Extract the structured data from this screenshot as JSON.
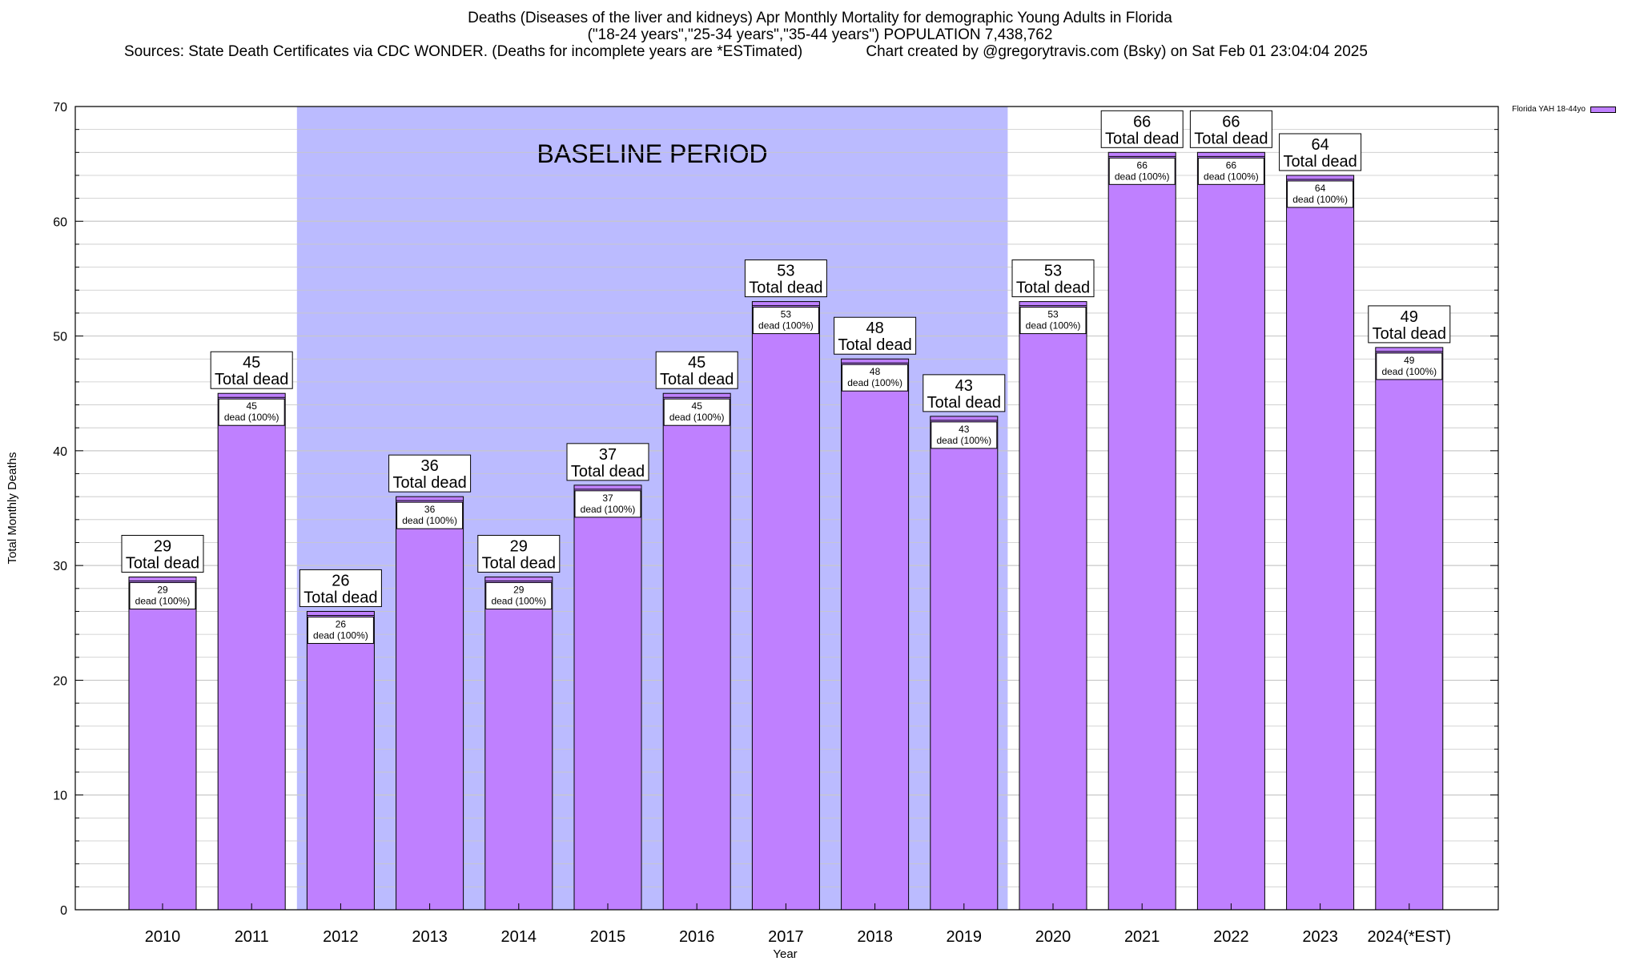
{
  "header": {
    "line1": "Deaths (Diseases of the liver and kidneys) Apr Monthly Mortality for demographic Young Adults in Florida",
    "line2": "(\"18-24 years\",\"25-34 years\",\"35-44 years\") POPULATION 7,438,762",
    "line3": "Sources: State Death Certificates via CDC WONDER. (Deaths for incomplete years are *ESTimated)               Chart created by @gregorytravis.com (Bsky) on Sat Feb 01 23:04:04 2025"
  },
  "colors": {
    "bar": "#bf80ff",
    "baseline": "#bbbbff",
    "grid": "#c8c8c8"
  },
  "chart_data": {
    "type": "bar",
    "categories": [
      "2010",
      "2011",
      "2012",
      "2013",
      "2014",
      "2015",
      "2016",
      "2017",
      "2018",
      "2019",
      "2020",
      "2021",
      "2022",
      "2023",
      "2024(*EST)"
    ],
    "values": [
      29,
      45,
      26,
      36,
      29,
      37,
      45,
      53,
      48,
      43,
      53,
      66,
      66,
      64,
      49
    ],
    "xlabel": "Year",
    "ylabel": "Total Monthly Deaths",
    "ylim": [
      0,
      70
    ],
    "yticks": [
      0,
      10,
      20,
      30,
      40,
      50,
      60,
      70
    ],
    "grid": true,
    "legend": {
      "label": "Florida YAH 18-44yo",
      "position": "top-right"
    },
    "baseline_band": {
      "label": "BASELINE PERIOD",
      "from": "2012",
      "to": "2019"
    },
    "top_label_suffix": "Total dead",
    "inner_label_suffix": "dead (100%)"
  }
}
